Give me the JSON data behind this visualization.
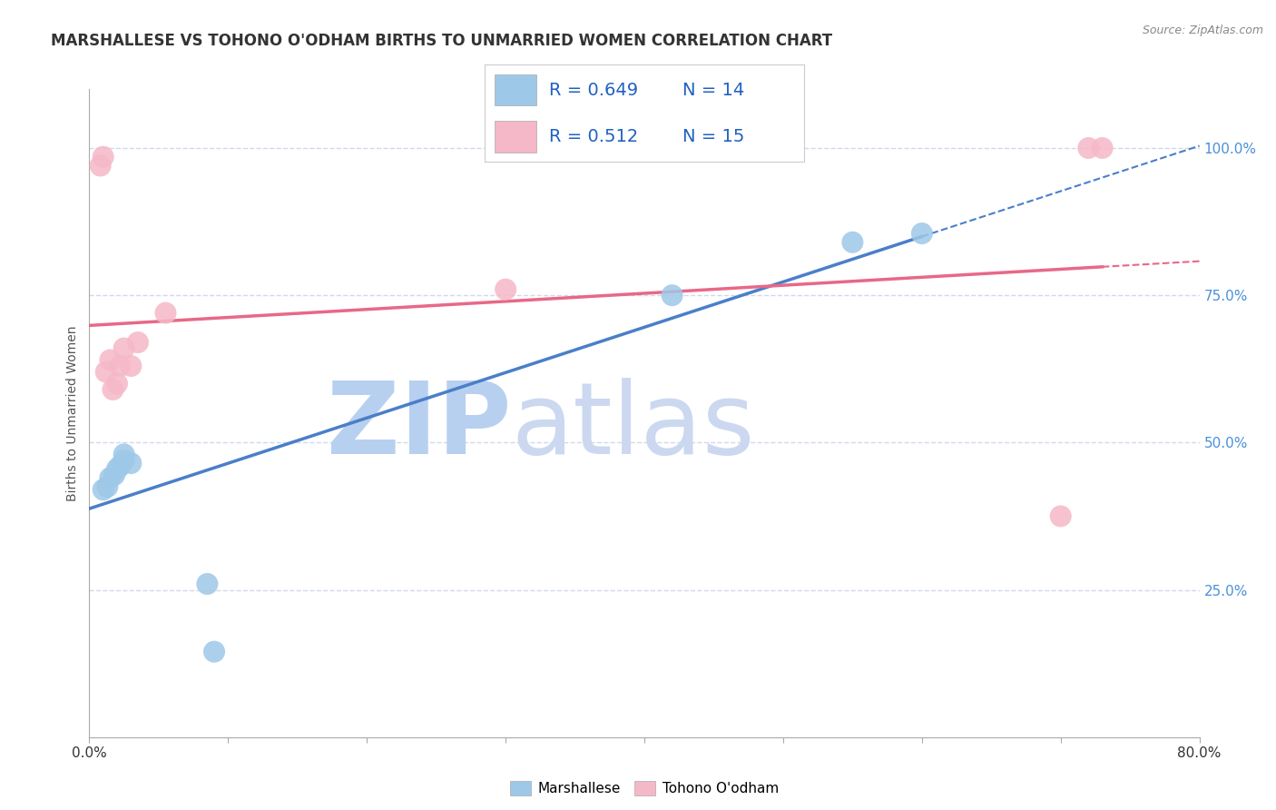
{
  "title": "MARSHALLESE VS TOHONO O'ODHAM BIRTHS TO UNMARRIED WOMEN CORRELATION CHART",
  "source": "Source: ZipAtlas.com",
  "ylabel": "Births to Unmarried Women",
  "x_min": 0.0,
  "x_max": 0.8,
  "y_min": 0.0,
  "y_max": 1.1,
  "y_ticks_right": [
    0.25,
    0.5,
    0.75,
    1.0
  ],
  "y_tick_labels_right": [
    "25.0%",
    "50.0%",
    "75.0%",
    "100.0%"
  ],
  "marshallese_color": "#9ec8e8",
  "tohono_color": "#f5b8c8",
  "marshallese_line_color": "#4a7fc8",
  "tohono_line_color": "#e86888",
  "R_marshallese": 0.649,
  "N_marshallese": 14,
  "R_tohono": 0.512,
  "N_tohono": 15,
  "marshallese_scatter_x": [
    0.01,
    0.013,
    0.015,
    0.018,
    0.02,
    0.022,
    0.025,
    0.025,
    0.03,
    0.085,
    0.09,
    0.42,
    0.55,
    0.6
  ],
  "marshallese_scatter_y": [
    0.42,
    0.425,
    0.44,
    0.445,
    0.455,
    0.46,
    0.47,
    0.48,
    0.465,
    0.26,
    0.145,
    0.75,
    0.84,
    0.855
  ],
  "tohono_scatter_x": [
    0.008,
    0.01,
    0.012,
    0.015,
    0.017,
    0.02,
    0.022,
    0.025,
    0.03,
    0.035,
    0.055,
    0.3,
    0.7,
    0.72,
    0.73
  ],
  "tohono_scatter_y": [
    0.97,
    0.985,
    0.62,
    0.64,
    0.59,
    0.6,
    0.63,
    0.66,
    0.63,
    0.67,
    0.72,
    0.76,
    0.375,
    1.0,
    1.0
  ],
  "watermark_zip_color": "#b8d0f0",
  "watermark_atlas_color": "#ccd8f0",
  "background_color": "#ffffff",
  "grid_color": "#d0d8ec",
  "title_fontsize": 12,
  "legend_text_color": "#2060c0",
  "legend_n_color": "#333333"
}
